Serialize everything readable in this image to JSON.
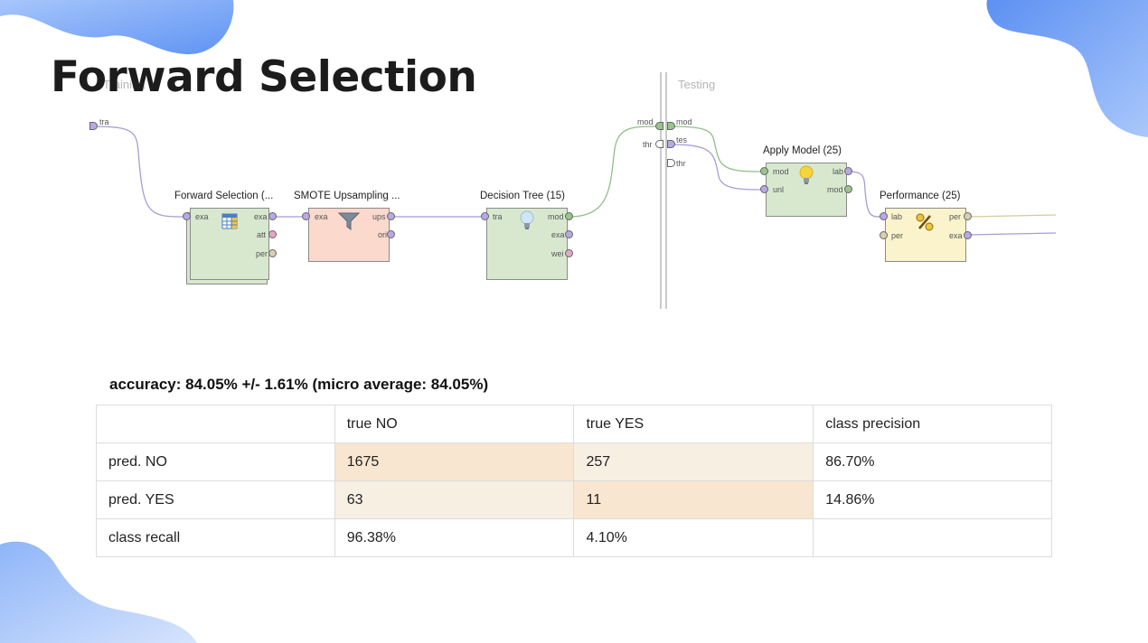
{
  "slide": {
    "title": "Forward Selection",
    "colors": {
      "blob": "#6d9ef5",
      "op_green": "#d7e8cf",
      "op_red": "#fbd9cd",
      "op_yellow": "#fbf3cc",
      "cell_diag": "#f8e6d0",
      "cell_off": "#f8efe3"
    }
  },
  "process": {
    "training_label": "Training",
    "testing_label": "Testing",
    "input_port": "tra",
    "operators": [
      {
        "name": "Forward Selection (...",
        "icon": "table-icon",
        "in": [
          "exa"
        ],
        "out": [
          "exa",
          "att",
          "per"
        ]
      },
      {
        "name": "SMOTE Upsampling ...",
        "icon": "funnel-icon",
        "in": [
          "exa"
        ],
        "out": [
          "ups",
          "ori"
        ]
      },
      {
        "name": "Decision Tree (15)",
        "icon": "lightbulb-icon",
        "in": [
          "tra"
        ],
        "out": [
          "mod",
          "exa",
          "wei"
        ]
      },
      {
        "name": "Apply Model (25)",
        "icon": "lightbulb-icon",
        "in": [
          "mod",
          "unl"
        ],
        "out": [
          "lab",
          "mod"
        ]
      },
      {
        "name": "Performance (25)",
        "icon": "percent-icon",
        "in": [
          "lab",
          "per"
        ],
        "out": [
          "per",
          "exa"
        ]
      }
    ],
    "boundary_left_ports": [
      "mod",
      "thr"
    ],
    "boundary_right_ports": [
      "mod",
      "tes",
      "thr"
    ]
  },
  "performance": {
    "accuracy": "accuracy: 84.05% +/- 1.61% (micro average: 84.05%)",
    "header": [
      "",
      "true NO",
      "true YES",
      "class precision"
    ],
    "rows": [
      [
        "pred. NO",
        "1675",
        "257",
        "86.70%"
      ],
      [
        "pred. YES",
        "63",
        "11",
        "14.86%"
      ],
      [
        "class recall",
        "96.38%",
        "4.10%",
        ""
      ]
    ]
  }
}
